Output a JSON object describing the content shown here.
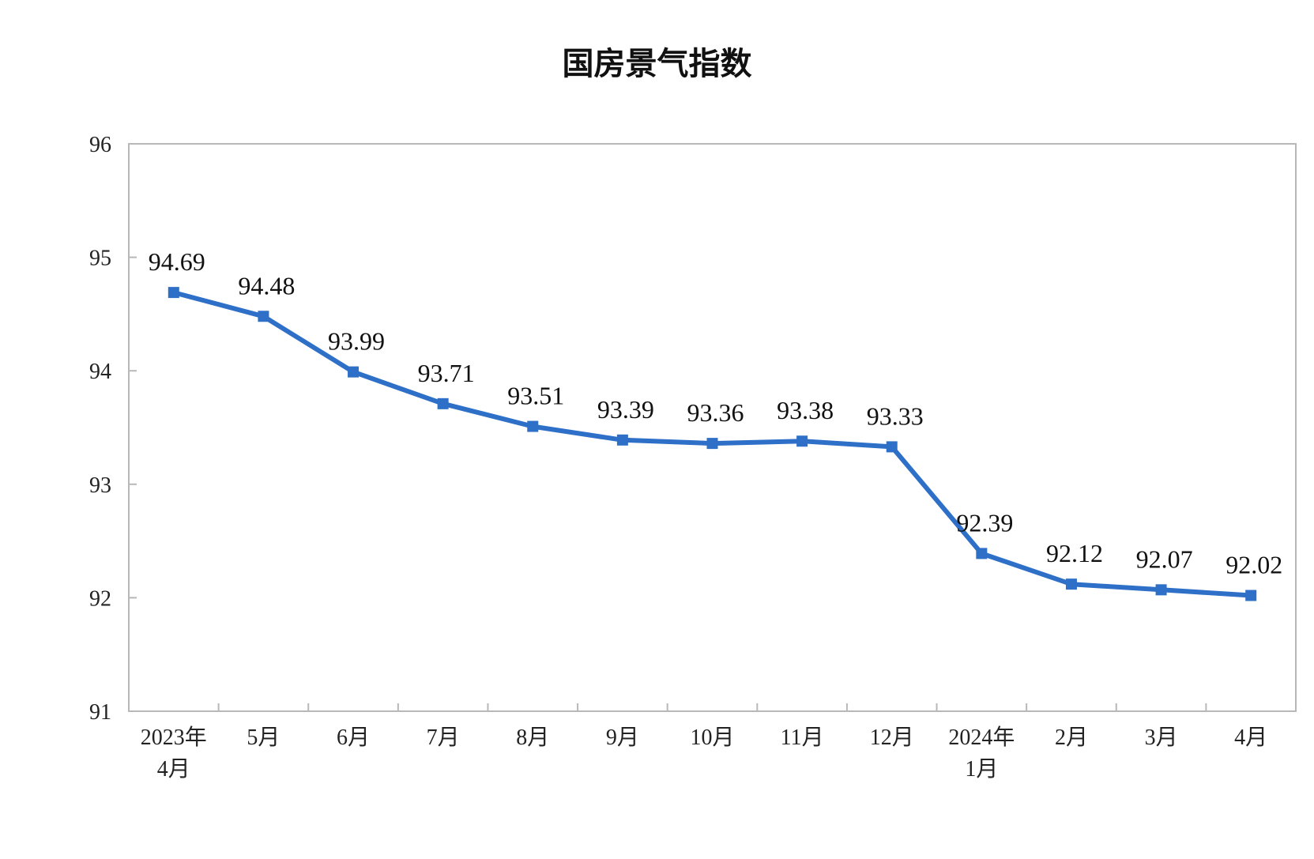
{
  "chart_data": {
    "type": "line",
    "title": "国房景气指数",
    "categories": [
      [
        "2023年",
        "4月"
      ],
      [
        "5月"
      ],
      [
        "6月"
      ],
      [
        "7月"
      ],
      [
        "8月"
      ],
      [
        "9月"
      ],
      [
        "10月"
      ],
      [
        "11月"
      ],
      [
        "12月"
      ],
      [
        "2024年",
        "1月"
      ],
      [
        "2月"
      ],
      [
        "3月"
      ],
      [
        "4月"
      ]
    ],
    "series": [
      {
        "values": [
          94.69,
          94.48,
          93.99,
          93.71,
          93.51,
          93.39,
          93.36,
          93.38,
          93.33,
          92.39,
          92.12,
          92.07,
          92.02
        ],
        "labels": [
          "94.69",
          "94.48",
          "93.99",
          "93.71",
          "93.51",
          "93.39",
          "93.36",
          "93.38",
          "93.33",
          "92.39",
          "92.12",
          "92.07",
          "92.02"
        ],
        "color": "#2e6fc7"
      }
    ],
    "ylim": [
      91,
      96
    ],
    "yticks": [
      "91",
      "92",
      "93",
      "94",
      "95",
      "96"
    ],
    "xlabel": "",
    "ylabel": "",
    "grid": false,
    "legend": "none"
  }
}
